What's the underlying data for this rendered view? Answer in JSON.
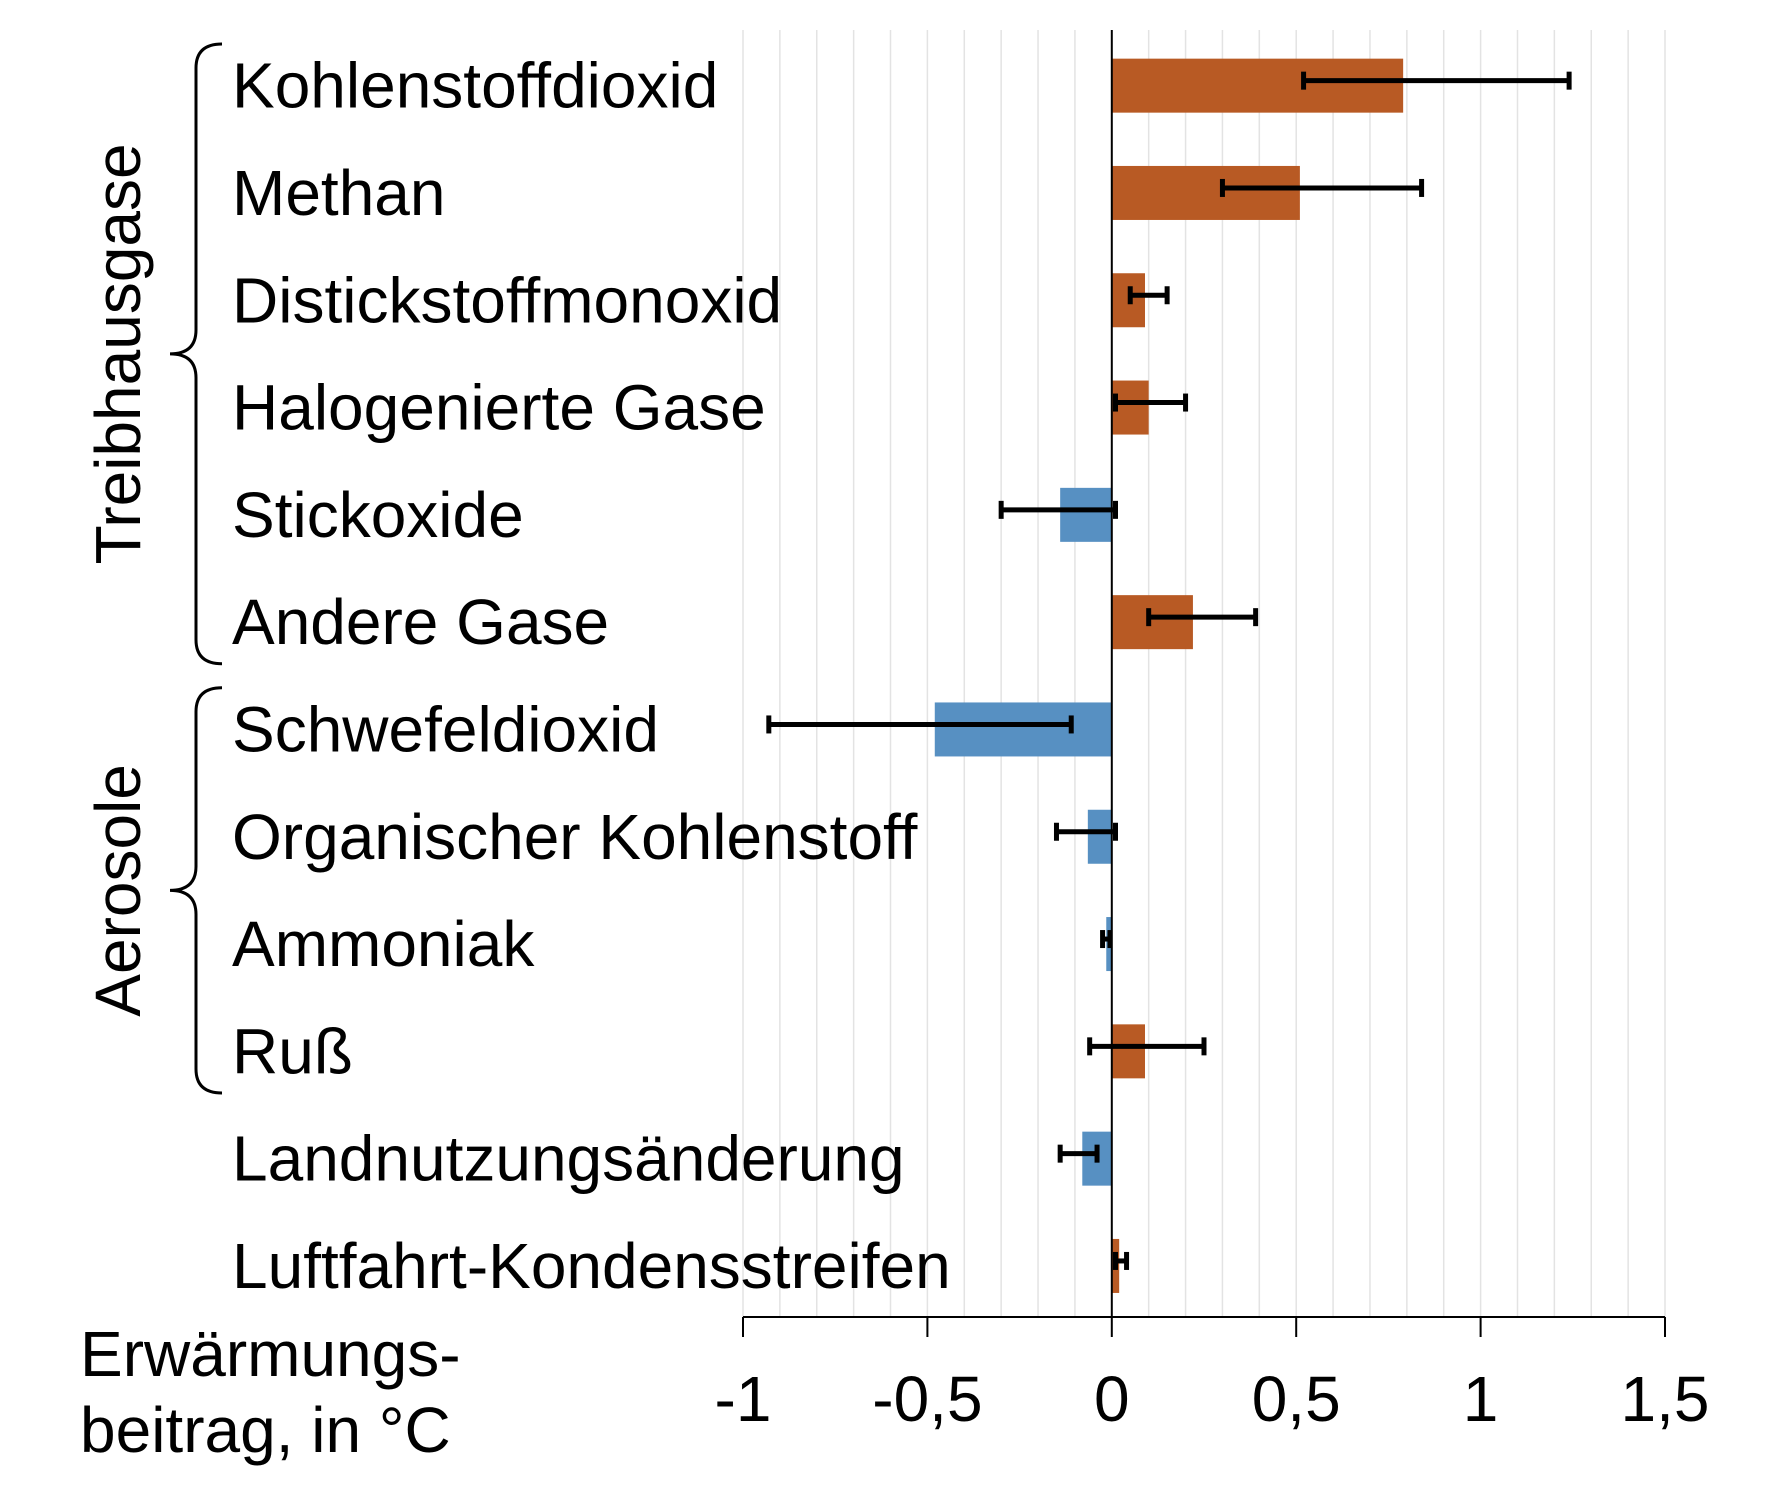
{
  "chart_data": {
    "type": "bar",
    "orientation": "horizontal",
    "categories": [
      "Kohlenstoffdioxid",
      "Methan",
      "Distickstoffmonoxid",
      "Halogenierte Gase",
      "Stickoxide",
      "Andere Gase",
      "Schwefeldioxid",
      "Organischer Kohlenstoff",
      "Ammoniak",
      "Ruß",
      "Landnutzungsänderung",
      "Luftfahrt-Kondensstreifen"
    ],
    "values": [
      0.79,
      0.51,
      0.09,
      0.1,
      -0.14,
      0.22,
      -0.48,
      -0.065,
      -0.015,
      0.09,
      -0.08,
      0.02
    ],
    "error_low": [
      0.52,
      0.3,
      0.05,
      0.01,
      -0.3,
      0.1,
      -0.93,
      -0.15,
      -0.025,
      -0.06,
      -0.14,
      0.01
    ],
    "error_high": [
      1.24,
      0.84,
      0.15,
      0.2,
      0.01,
      0.39,
      -0.11,
      0.01,
      -0.005,
      0.25,
      -0.04,
      0.04
    ],
    "groups": [
      {
        "label": "Treibhausgase",
        "start": 0,
        "end": 5
      },
      {
        "label": "Aerosole",
        "start": 6,
        "end": 9
      }
    ],
    "xlim": [
      -1,
      1.5
    ],
    "xticks": [
      -1,
      -0.5,
      0,
      0.5,
      1,
      1.5
    ],
    "xtick_labels": [
      "-1",
      "-0,5",
      "0",
      "0,5",
      "1",
      "1,5"
    ],
    "xlabel_lines": [
      "Erwärmungs-",
      "beitrag, in °C"
    ],
    "minor_grid_step": 0.1,
    "grid": true,
    "colors": {
      "positive": "#b85a24",
      "negative": "#5790c2",
      "grid": "#e3e3e3",
      "axis": "#000000"
    }
  }
}
